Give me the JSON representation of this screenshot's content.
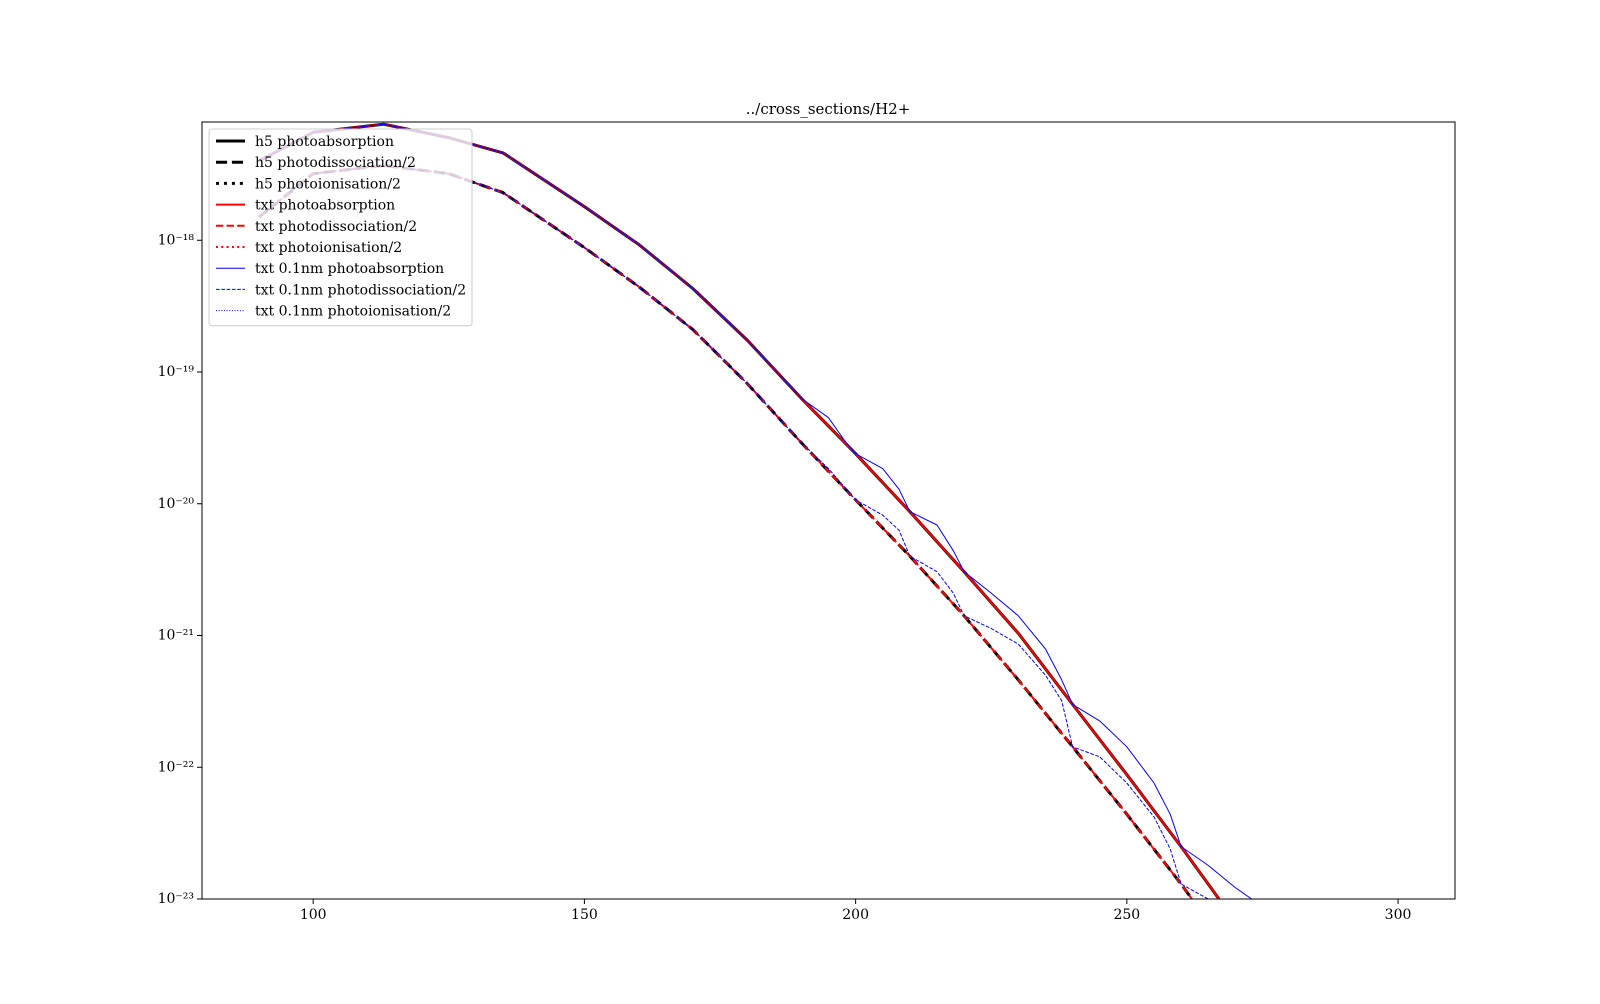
{
  "chart_data": {
    "type": "line",
    "title": "../cross_sections/H2+",
    "yscale": "log",
    "legend": "upper left",
    "xlim": [
      79.5,
      310.5
    ],
    "xticks": [
      100,
      150,
      200,
      250,
      300
    ],
    "ylim": [
      1e-23,
      7.9e-18
    ],
    "yticks": [
      {
        "value": 1e-23,
        "label": "10⁻²³"
      },
      {
        "value": 1e-22,
        "label": "10⁻²²"
      },
      {
        "value": 1e-21,
        "label": "10⁻²¹"
      },
      {
        "value": 1e-20,
        "label": "10⁻²⁰"
      },
      {
        "value": 1e-19,
        "label": "10⁻¹⁹"
      },
      {
        "value": 1e-18,
        "label": "10⁻¹⁸"
      }
    ],
    "series": [
      {
        "name": "h5 photoabsorption",
        "color": "#000000",
        "linestyle": "solid",
        "linewidth": 3,
        "x": [
          90,
          100,
          113,
          125,
          135,
          150,
          160,
          170,
          180,
          190,
          200,
          210,
          220,
          230,
          240,
          250,
          260,
          267
        ],
        "values": [
          4e-18,
          6.6e-18,
          7.6e-18,
          6e-18,
          4.6e-18,
          1.8e-18,
          9.3e-19,
          4.3e-19,
          1.75e-19,
          6.3e-20,
          2.4e-20,
          8.7e-21,
          3.05e-21,
          1.04e-21,
          3e-22,
          8.8e-23,
          2.5e-23,
          1e-23
        ]
      },
      {
        "name": "h5 photodissociation/2",
        "color": "#000000",
        "linestyle": "dashed",
        "linewidth": 3,
        "x": [
          90,
          100,
          113,
          125,
          135,
          150,
          160,
          170,
          180,
          190,
          200,
          210,
          220,
          230,
          240,
          250,
          260,
          262
        ],
        "values": [
          1.5e-18,
          3.2e-18,
          3.7e-18,
          3.2e-18,
          2.3e-18,
          8.8e-19,
          4.45e-19,
          2.1e-19,
          8.2e-20,
          2.9e-20,
          1.07e-20,
          4e-21,
          1.41e-21,
          4.6e-22,
          1.43e-22,
          4.4e-23,
          1.3e-23,
          1e-23
        ]
      },
      {
        "name": "h5 photoionisation/2",
        "color": "#000000",
        "linestyle": "dotted",
        "linewidth": 3,
        "x": [
          90,
          267
        ],
        "values": [
          null,
          null
        ]
      },
      {
        "name": "txt photoabsorption",
        "color": "#ff0000",
        "linestyle": "solid",
        "linewidth": 2,
        "x": [
          90,
          100,
          113,
          125,
          135,
          150,
          160,
          170,
          180,
          190,
          200,
          210,
          220,
          230,
          240,
          250,
          260,
          267
        ],
        "values": [
          4e-18,
          6.6e-18,
          7.6e-18,
          6e-18,
          4.6e-18,
          1.8e-18,
          9.3e-19,
          4.3e-19,
          1.75e-19,
          6.3e-20,
          2.4e-20,
          8.7e-21,
          3.05e-21,
          1.04e-21,
          3e-22,
          8.8e-23,
          2.5e-23,
          1e-23
        ]
      },
      {
        "name": "txt photodissociation/2",
        "color": "#ff0000",
        "linestyle": "dashed",
        "linewidth": 2,
        "x": [
          90,
          100,
          113,
          125,
          135,
          150,
          160,
          170,
          180,
          190,
          200,
          210,
          220,
          230,
          240,
          250,
          260,
          262
        ],
        "values": [
          1.5e-18,
          3.2e-18,
          3.7e-18,
          3.2e-18,
          2.3e-18,
          8.8e-19,
          4.45e-19,
          2.1e-19,
          8.2e-20,
          2.9e-20,
          1.07e-20,
          4e-21,
          1.41e-21,
          4.6e-22,
          1.43e-22,
          4.4e-23,
          1.3e-23,
          1e-23
        ]
      },
      {
        "name": "txt photoionisation/2",
        "color": "#ff0000",
        "linestyle": "dotted",
        "linewidth": 2,
        "x": [
          90,
          267
        ],
        "values": [
          null,
          null
        ]
      },
      {
        "name": "txt 0.1nm photoabsorption",
        "color": "#0000ff",
        "linestyle": "solid",
        "linewidth": 1,
        "x": [
          90,
          100,
          113,
          125,
          135,
          150,
          160,
          170,
          180,
          190,
          195,
          198,
          200,
          205,
          208,
          210,
          215,
          218,
          220,
          225,
          230,
          235,
          238,
          240,
          245,
          250,
          255,
          258,
          260,
          265,
          270,
          273
        ],
        "values": [
          4e-18,
          6.6e-18,
          7.6e-18,
          6e-18,
          4.6e-18,
          1.8e-18,
          9.3e-19,
          4.3e-19,
          1.75e-19,
          6.3e-20,
          4.5e-20,
          3e-20,
          2.4e-20,
          1.85e-20,
          1.29e-20,
          8.7e-21,
          6.9e-21,
          4.4e-21,
          3.05e-21,
          2.1e-21,
          1.41e-21,
          7.9e-22,
          4.6e-22,
          3e-22,
          2.25e-22,
          1.43e-22,
          7.6e-23,
          4.4e-23,
          2.5e-23,
          1.8e-23,
          1.22e-23,
          1e-23
        ]
      },
      {
        "name": "txt 0.1nm photodissociation/2",
        "color": "#0000ff",
        "linestyle": "dashed",
        "linewidth": 1,
        "x": [
          90,
          100,
          113,
          125,
          135,
          150,
          160,
          170,
          180,
          190,
          195,
          200,
          205,
          208,
          210,
          215,
          218,
          220,
          225,
          230,
          235,
          238,
          240,
          245,
          250,
          255,
          258,
          260,
          265
        ],
        "values": [
          1.5e-18,
          3.2e-18,
          3.7e-18,
          3.2e-18,
          2.3e-18,
          8.8e-19,
          4.45e-19,
          2.1e-19,
          8.2e-20,
          2.9e-20,
          1.85e-20,
          1.07e-20,
          8.2e-21,
          6.3e-21,
          4e-21,
          3.05e-21,
          2.1e-21,
          1.41e-21,
          1.13e-21,
          8.6e-22,
          5e-22,
          3.2e-22,
          1.43e-22,
          1.2e-22,
          7.6e-23,
          4.2e-23,
          2.4e-23,
          1.3e-23,
          1e-23
        ]
      },
      {
        "name": "txt 0.1nm photoionisation/2",
        "color": "#0000ff",
        "linestyle": "dotted",
        "linewidth": 1,
        "x": [
          90,
          273
        ],
        "values": [
          null,
          null
        ]
      }
    ]
  }
}
